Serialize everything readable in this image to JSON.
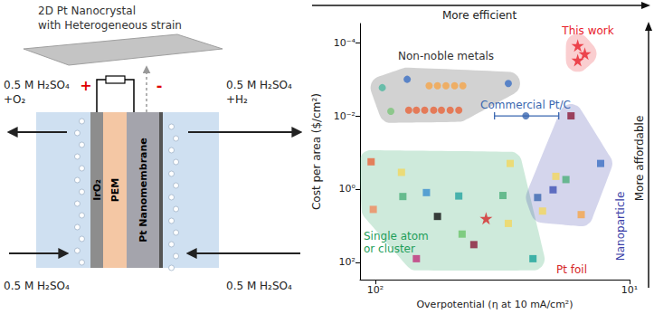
{
  "chart_data": {
    "type": "scatter",
    "xlabel": "Overpotential (η at 10 mA/cm²)",
    "ylabel": "Cost per area ($/cm²)",
    "log": true,
    "grid": false,
    "xlim": [
      10,
      115
    ],
    "ylim": [
      3e-05,
      300
    ],
    "xticks": [
      {
        "value": 100,
        "label": "10²"
      },
      {
        "value": 10,
        "label": "10¹"
      }
    ],
    "yticks": [
      {
        "value": 0.0001,
        "label": "10⁻⁴"
      },
      {
        "value": 0.01,
        "label": "10⁻²"
      },
      {
        "value": 1,
        "label": "10⁰"
      },
      {
        "value": 100,
        "label": "10²"
      }
    ],
    "annotations": [
      {
        "text": "More efficient"
      },
      {
        "text": "More affordable"
      }
    ],
    "series": [
      {
        "name": "This work",
        "color": "#e8202a",
        "marker": "star",
        "x": [
          16,
          15,
          16
        ],
        "values": [
          0.00012,
          0.0002,
          0.0003
        ],
        "colors": [
          "#e8202a",
          "#e8202a",
          "#e8202a"
        ]
      },
      {
        "name": "Non-noble metals",
        "color": "#333333",
        "marker": "circle",
        "x": [
          75,
          94,
          61.5,
          57,
          52.8,
          48.8,
          45.3,
          87,
          74,
          69,
          64,
          59,
          55,
          50.8,
          47,
          30
        ],
        "values": [
          0.001,
          0.0017,
          0.0015,
          0.0015,
          0.0015,
          0.0015,
          0.0015,
          0.0075,
          0.007,
          0.007,
          0.007,
          0.007,
          0.007,
          0.007,
          0.007,
          0.0013
        ],
        "colors": [
          "#3b6fc4",
          "#4fb8a0",
          "#f5a54a",
          "#f5a54a",
          "#f5a54a",
          "#f5a54a",
          "#f5a54a",
          "#7cc47a",
          "#e8643a",
          "#e8643a",
          "#e8643a",
          "#e8643a",
          "#e8643a",
          "#e8643a",
          "#e8643a",
          "#3b6fc4"
        ]
      },
      {
        "name": "Commercial Pt/C",
        "color": "#3a67b0",
        "marker": "circle",
        "x": [
          25.6
        ],
        "values": [
          0.01
        ],
        "x_error": [
          [
            19,
            34
          ]
        ],
        "colors": [
          "#3a67b0"
        ]
      },
      {
        "name": "Single atom or cluster",
        "color": "#1e9e5a",
        "marker": "square",
        "x": [
          104,
          102,
          79,
          78,
          69,
          63,
          57,
          47,
          45.6,
          41,
          29.5,
          31.5,
          30,
          24
        ],
        "values": [
          0.18,
          3.6,
          0.35,
          1.6,
          80,
          1.25,
          5.6,
          1.55,
          17,
          33,
          0.2,
          1.5,
          8.7,
          80
        ],
        "colors": [
          "#e8643a",
          "#f08a5d",
          "#f2d75e",
          "#4caf7a",
          "#c0307a",
          "#3a8fd0",
          "#111111",
          "#27a4a0",
          "#6cc46a",
          "#8b1a3a",
          "#f2d75e",
          "#4caf7a",
          "#f2d75e",
          "#1aa39a"
        ]
      },
      {
        "name": "Nanoparticle",
        "color": "#3b3fa8",
        "marker": "square",
        "x": [
          23,
          20,
          17.8,
          15.5,
          22,
          19.5,
          17,
          13
        ],
        "values": [
          1.7,
          1.05,
          0.55,
          5,
          4,
          0.45,
          0.01,
          0.2
        ],
        "colors": [
          "#3a67b0",
          "#3f51b5",
          "#4caf7a",
          "#f5a54a",
          "#f2d75e",
          "#f2d75e",
          "#8b1a3a",
          "#3b6fc4"
        ]
      },
      {
        "name": "Pt foil",
        "color": "#d62728",
        "marker": "star",
        "x": [
          36.7
        ],
        "values": [
          6.3
        ],
        "colors": [
          "#d62728"
        ]
      }
    ]
  },
  "diagram": {
    "nanocrystal_label": [
      "2D Pt Nanocrystal",
      "with Heterogeneous strain"
    ],
    "terminals": [
      "+",
      "-"
    ],
    "layers": [
      "IrO₂",
      "PEM",
      "Pt Nanomembrane"
    ],
    "anode_outlet": [
      "0.5 M H₂SO₄",
      "+O₂"
    ],
    "cathode_outlet": [
      "0.5 M H₂SO₄",
      "+H₂"
    ],
    "anode_inlet": "0.5 M H₂SO₄",
    "cathode_inlet": "0.5 M H₂SO₄"
  }
}
